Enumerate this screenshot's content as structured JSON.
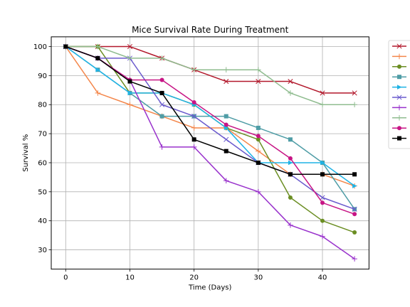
{
  "chart_data": {
    "type": "line",
    "title": "Mice Survival Rate During Treatment",
    "xlabel": "Time (Days)",
    "ylabel": "Survival %",
    "xlim": [
      -2.25,
      47.25
    ],
    "ylim": [
      23.35,
      103.35
    ],
    "xticks": [
      0,
      10,
      20,
      30,
      40
    ],
    "yticks": [
      30,
      40,
      50,
      60,
      70,
      80,
      90,
      100
    ],
    "grid": true,
    "legend_position": "outside-right",
    "x": [
      0,
      5,
      10,
      15,
      20,
      25,
      30,
      35,
      40,
      45
    ],
    "series": [
      {
        "color": "#b2182b",
        "marker": "x",
        "values": [
          100,
          100,
          100,
          96,
          92,
          88,
          88,
          88,
          84,
          84
        ]
      },
      {
        "color": "#f4874b",
        "marker": "+",
        "values": [
          100,
          84,
          80,
          76,
          72,
          72,
          64,
          56,
          56,
          52
        ]
      },
      {
        "color": "#6b8e23",
        "marker": "circle",
        "values": [
          100,
          100,
          84,
          84,
          80,
          72,
          68,
          48,
          40,
          36
        ]
      },
      {
        "color": "#4f9da6",
        "marker": "square",
        "values": [
          100,
          92,
          84,
          76,
          76,
          76,
          72,
          68,
          60,
          44
        ]
      },
      {
        "color": "#1fb3e5",
        "marker": "triangle-right",
        "values": [
          100,
          92,
          84,
          84,
          80,
          72,
          60,
          60,
          60,
          52
        ]
      },
      {
        "color": "#6a5acd",
        "marker": "x",
        "values": [
          100,
          96,
          96,
          80,
          76,
          68,
          60,
          56,
          48,
          44
        ]
      },
      {
        "color": "#9932cc",
        "marker": "+",
        "values": [
          100,
          96,
          88.5,
          65.4,
          65.4,
          53.8,
          50,
          38.5,
          34.6,
          26.9
        ]
      },
      {
        "color": "#8fbc8f",
        "marker": "+",
        "values": [
          100,
          100,
          96,
          96,
          92,
          92,
          92,
          84,
          80,
          80
        ]
      },
      {
        "color": "#c71585",
        "marker": "circle",
        "values": [
          100,
          96,
          88.5,
          88.5,
          80.8,
          73.1,
          69.2,
          61.5,
          46.2,
          42.3
        ]
      },
      {
        "color": "#000000",
        "marker": "square",
        "values": [
          100,
          96,
          88,
          84,
          68,
          64,
          60,
          56,
          56,
          56
        ]
      }
    ]
  }
}
